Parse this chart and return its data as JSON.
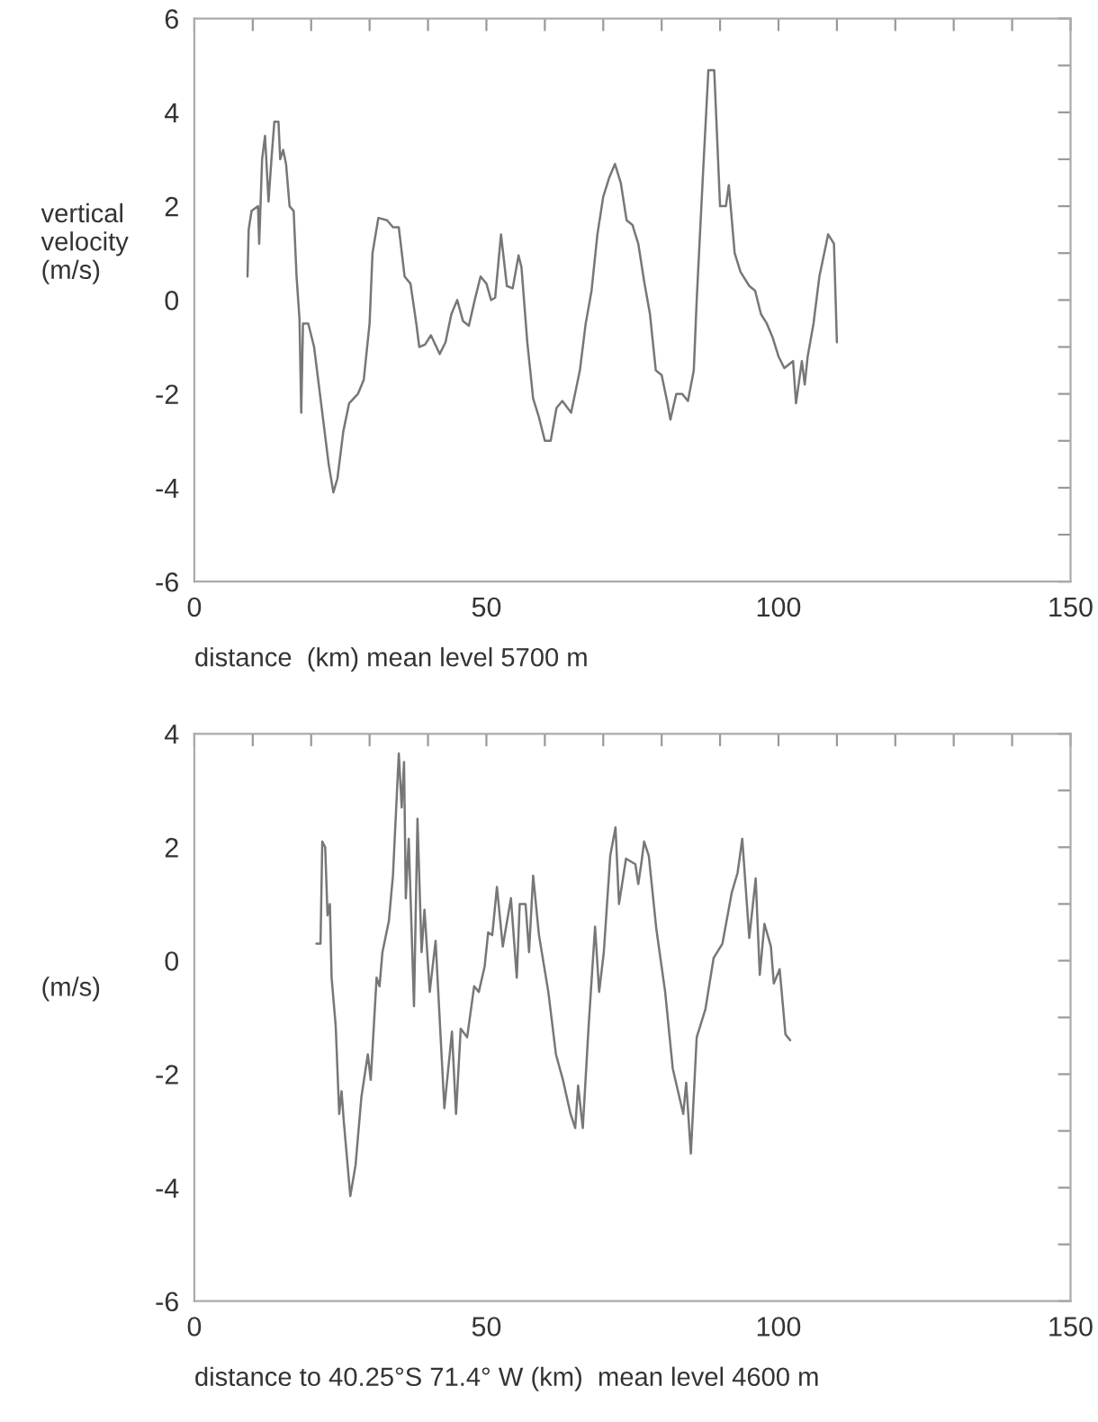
{
  "chart_data": [
    {
      "type": "line",
      "ylabel": "vertical\nvelocity\n(m/s)",
      "xlabel": "distance  (km) mean level 5700 m",
      "xlim": [
        0,
        150
      ],
      "ylim": [
        -6,
        6
      ],
      "xticks": [
        0,
        {
          "value": 10,
          "label": null
        },
        {
          "value": 20,
          "label": null
        },
        {
          "value": 30,
          "label": null
        },
        {
          "value": 40,
          "label": null
        },
        50,
        {
          "value": 60,
          "label": null
        },
        {
          "value": 70,
          "label": null
        },
        {
          "value": 80,
          "label": null
        },
        {
          "value": 90,
          "label": null
        },
        100,
        {
          "value": 110,
          "label": null
        },
        {
          "value": 120,
          "label": null
        },
        {
          "value": 130,
          "label": null
        },
        {
          "value": 140,
          "label": null
        },
        150
      ],
      "yticks": [
        -6,
        {
          "value": -5,
          "label": null
        },
        -4,
        {
          "value": -3,
          "label": null
        },
        -2,
        {
          "value": -1,
          "label": null
        },
        0,
        {
          "value": 1,
          "label": null
        },
        2,
        {
          "value": 3,
          "label": null
        },
        4,
        {
          "value": 5,
          "label": null
        },
        6
      ],
      "grid": false,
      "legend": false,
      "series": [
        {
          "color": "#777777",
          "x": [
            9.1,
            9.3,
            9.8,
            10.9,
            11.1,
            11.6,
            12.1,
            12.7,
            13.2,
            13.7,
            14.4,
            14.7,
            15.2,
            15.7,
            16.3,
            17.0,
            17.5,
            18.0,
            18.3,
            18.6,
            19.5,
            20.5,
            21.5,
            23,
            23.8,
            24.5,
            25.5,
            26.5,
            28,
            29,
            30,
            30.5,
            31.5,
            33,
            34,
            35,
            36,
            37,
            38,
            38.5,
            39.5,
            40.5,
            42,
            43,
            44,
            45,
            46,
            47,
            48,
            49,
            50,
            50.8,
            51.5,
            52.5,
            53.5,
            54.5,
            55.5,
            56,
            57,
            58,
            59,
            60,
            61,
            62,
            63,
            64.5,
            66,
            67,
            68,
            69,
            70,
            71,
            72,
            73,
            74,
            75,
            76,
            77,
            78,
            79,
            80,
            81,
            81.5,
            82.5,
            83.5,
            84.5,
            85.5,
            86,
            87,
            88,
            89,
            90,
            91,
            91.5,
            92.5,
            93.5,
            95,
            96,
            97,
            98,
            99,
            100,
            101,
            102.5,
            103,
            104,
            104.5,
            105,
            106,
            107,
            108.5,
            109.5,
            110
          ],
          "values": [
            0.5,
            1.5,
            1.9,
            2.0,
            1.2,
            3.0,
            3.5,
            2.1,
            3.0,
            3.8,
            3.8,
            3.0,
            3.2,
            2.9,
            2.0,
            1.9,
            0.5,
            -0.4,
            -2.4,
            -0.5,
            -0.5,
            -1.0,
            -2.0,
            -3.5,
            -4.1,
            -3.8,
            -2.8,
            -2.2,
            -2.0,
            -1.7,
            -0.5,
            1.0,
            1.75,
            1.7,
            1.55,
            1.55,
            0.5,
            0.35,
            -0.5,
            -1.0,
            -0.95,
            -0.75,
            -1.15,
            -0.9,
            -0.3,
            0.0,
            -0.45,
            -0.55,
            0.0,
            0.5,
            0.35,
            0.0,
            0.05,
            1.4,
            0.3,
            0.25,
            0.95,
            0.7,
            -0.9,
            -2.1,
            -2.5,
            -3.0,
            -3.0,
            -2.3,
            -2.15,
            -2.4,
            -1.5,
            -0.5,
            0.2,
            1.4,
            2.2,
            2.6,
            2.9,
            2.5,
            1.7,
            1.6,
            1.2,
            0.4,
            -0.3,
            -1.5,
            -1.6,
            -2.2,
            -2.55,
            -2.0,
            -2.0,
            -2.15,
            -1.5,
            0.0,
            2.5,
            4.9,
            4.9,
            2.0,
            2.0,
            2.45,
            1.0,
            0.6,
            0.3,
            0.2,
            -0.3,
            -0.5,
            -0.8,
            -1.2,
            -1.45,
            -1.3,
            -2.2,
            -1.3,
            -1.8,
            -1.2,
            -0.5,
            0.5,
            1.4,
            1.2,
            -0.9
          ]
        }
      ]
    },
    {
      "type": "line",
      "ylabel": "(m/s)",
      "xlabel": "distance to 40.25°S 71.4° W (km)  mean level 4600 m",
      "xlim": [
        0,
        150
      ],
      "ylim": [
        -6,
        4
      ],
      "xticks": [
        0,
        {
          "value": 10,
          "label": null
        },
        {
          "value": 20,
          "label": null
        },
        {
          "value": 30,
          "label": null
        },
        {
          "value": 40,
          "label": null
        },
        50,
        {
          "value": 60,
          "label": null
        },
        {
          "value": 70,
          "label": null
        },
        {
          "value": 80,
          "label": null
        },
        {
          "value": 90,
          "label": null
        },
        100,
        {
          "value": 110,
          "label": null
        },
        {
          "value": 120,
          "label": null
        },
        {
          "value": 130,
          "label": null
        },
        {
          "value": 140,
          "label": null
        },
        150
      ],
      "yticks": [
        -6,
        {
          "value": -5,
          "label": null
        },
        -4,
        {
          "value": -3,
          "label": null
        },
        -2,
        {
          "value": -1,
          "label": null
        },
        0,
        {
          "value": 1,
          "label": null
        },
        2,
        {
          "value": 3,
          "label": null
        },
        4
      ],
      "grid": false,
      "legend": false,
      "series": [
        {
          "color": "#777777",
          "x": [
            20.9,
            21.6,
            21.9,
            22.4,
            22.8,
            23.2,
            23.5,
            24.2,
            24.8,
            25.2,
            25.6,
            26.7,
            27.6,
            28.6,
            29.7,
            30.2,
            31.2,
            31.7,
            32.2,
            33.3,
            34.0,
            35.0,
            35.5,
            35.9,
            36.2,
            36.7,
            37.6,
            38.2,
            38.9,
            39.4,
            40.3,
            41.3,
            42.8,
            44.1,
            44.8,
            45.6,
            46.7,
            47.9,
            48.7,
            49.7,
            50.3,
            51.0,
            51.8,
            52.8,
            54.2,
            55.2,
            55.7,
            56.7,
            57.3,
            58.0,
            59.0,
            60.6,
            61.9,
            63.1,
            64.4,
            65.2,
            65.7,
            66.5,
            67.5,
            68.6,
            69.3,
            70.1,
            71.2,
            72.1,
            72.7,
            73.9,
            75.5,
            76.0,
            76.5,
            77.0,
            77.8,
            79.1,
            80.6,
            81.9,
            83.7,
            84.2,
            85.0,
            86.0,
            87.5,
            88.9,
            90.4,
            92.0,
            93.0,
            93.8,
            95.0,
            96.1,
            96.8,
            97.6,
            98.7,
            99.2,
            100.2,
            101.2,
            102.0
          ],
          "values": [
            0.3,
            0.3,
            2.1,
            2.0,
            0.8,
            1.0,
            -0.3,
            -1.15,
            -2.7,
            -2.3,
            -2.85,
            -4.15,
            -3.6,
            -2.4,
            -1.65,
            -2.1,
            -0.3,
            -0.45,
            0.15,
            0.7,
            1.5,
            3.65,
            2.7,
            3.5,
            1.1,
            2.15,
            -0.8,
            2.5,
            0.15,
            0.9,
            -0.55,
            0.35,
            -2.6,
            -1.25,
            -2.7,
            -1.2,
            -1.35,
            -0.45,
            -0.55,
            -0.1,
            0.5,
            0.45,
            1.3,
            0.25,
            1.1,
            -0.3,
            1.0,
            1.0,
            0.15,
            1.5,
            0.45,
            -0.55,
            -1.65,
            -2.1,
            -2.7,
            -2.95,
            -2.2,
            -2.95,
            -1.15,
            0.6,
            -0.55,
            0.15,
            1.85,
            2.35,
            1.0,
            1.8,
            1.7,
            1.35,
            1.7,
            2.1,
            1.85,
            0.55,
            -0.55,
            -1.9,
            -2.7,
            -2.15,
            -3.4,
            -1.35,
            -0.85,
            0.05,
            0.3,
            1.2,
            1.55,
            2.15,
            0.4,
            1.45,
            -0.25,
            0.65,
            0.25,
            -0.4,
            -0.15,
            -1.3,
            -1.4
          ]
        }
      ]
    }
  ]
}
